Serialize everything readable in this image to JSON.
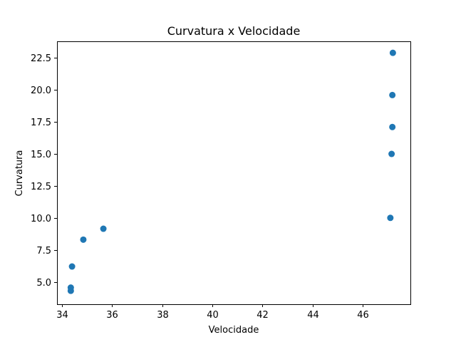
{
  "chart_data": {
    "type": "scatter",
    "title": "Curvatura x Velocidade",
    "xlabel": "Velocidade",
    "ylabel": "Curvatura",
    "xlim": [
      33.8,
      47.9
    ],
    "ylim": [
      3.25,
      23.8
    ],
    "xticks": [
      34,
      36,
      38,
      40,
      42,
      44,
      46
    ],
    "xtick_labels": [
      "34",
      "36",
      "38",
      "40",
      "42",
      "44",
      "46"
    ],
    "yticks": [
      5.0,
      7.5,
      10.0,
      12.5,
      15.0,
      17.5,
      20.0,
      22.5
    ],
    "ytick_labels": [
      "5.0",
      "7.5",
      "10.0",
      "12.5",
      "15.0",
      "17.5",
      "20.0",
      "22.5"
    ],
    "grid": false,
    "legend": "none",
    "series": [
      {
        "color": "#1f77b4",
        "points": [
          {
            "x": 34.35,
            "y": 4.3
          },
          {
            "x": 34.35,
            "y": 4.55
          },
          {
            "x": 34.4,
            "y": 6.2
          },
          {
            "x": 34.85,
            "y": 8.3
          },
          {
            "x": 35.65,
            "y": 9.15
          },
          {
            "x": 47.1,
            "y": 10.0
          },
          {
            "x": 47.15,
            "y": 15.0
          },
          {
            "x": 47.18,
            "y": 17.1
          },
          {
            "x": 47.18,
            "y": 19.6
          },
          {
            "x": 47.2,
            "y": 22.9
          }
        ]
      }
    ]
  }
}
